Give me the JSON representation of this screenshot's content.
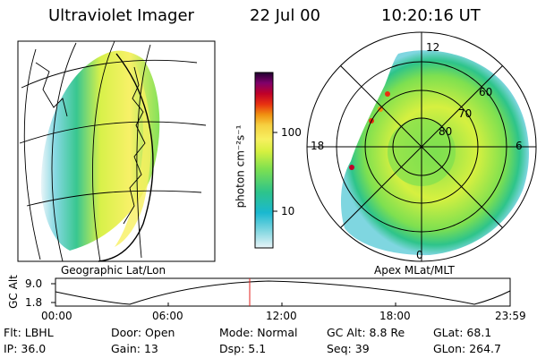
{
  "header": {
    "instrument": "Ultraviolet Imager",
    "date": "22 Jul 00",
    "time": "10:20:16 UT"
  },
  "left_panel": {
    "caption": "Geographic Lat/Lon"
  },
  "right_panel": {
    "caption": "Apex MLat/MLT",
    "mlt_labels": {
      "top": "12",
      "left": "18",
      "right": "6",
      "bottom": "0"
    },
    "mlat_labels": [
      "60",
      "70",
      "80"
    ]
  },
  "colorbar": {
    "unit_label": "photon cm⁻²s⁻¹",
    "tick_labels": [
      "100",
      "10"
    ],
    "scale": "log",
    "colors": [
      "#e8f4f8",
      "#7fd6e0",
      "#1ab8d0",
      "#2ec48a",
      "#7ee050",
      "#d6f040",
      "#f7f060",
      "#f6d040",
      "#f09010",
      "#e83010",
      "#c00028",
      "#80006a",
      "#200030"
    ]
  },
  "altitude_plot": {
    "ylabel": "GC Alt",
    "y_ticks": [
      "9.0",
      "1.8"
    ],
    "x_ticks": [
      "00:00",
      "06:00",
      "12:00",
      "18:00",
      "23:59"
    ],
    "marker_time": "10:20:16"
  },
  "status": {
    "row1": [
      {
        "label": "Flt:",
        "value": "LBHL"
      },
      {
        "label": "Door:",
        "value": "Open"
      },
      {
        "label": "Mode:",
        "value": "Normal"
      },
      {
        "label": "GC Alt:",
        "value": "8.8 Re"
      },
      {
        "label": "GLat:",
        "value": "68.1"
      }
    ],
    "row2": [
      {
        "label": "IP:",
        "value": "36.0"
      },
      {
        "label": "Gain:",
        "value": "13"
      },
      {
        "label": "Dsp:",
        "value": "5.1"
      },
      {
        "label": "Seq:",
        "value": "39"
      },
      {
        "label": "GLon:",
        "value": "264.7"
      }
    ]
  }
}
